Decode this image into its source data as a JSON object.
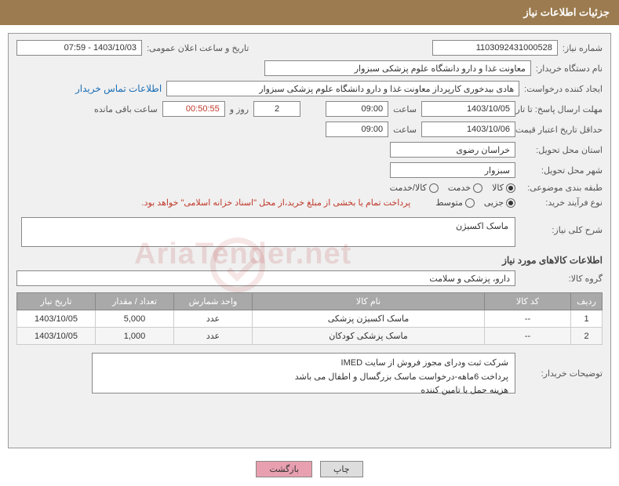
{
  "header": {
    "title": "جزئیات اطلاعات نیاز"
  },
  "fields": {
    "need_number_label": "شماره نیاز:",
    "need_number": "1103092431000528",
    "announce_datetime_label": "تاریخ و ساعت اعلان عمومی:",
    "announce_datetime": "1403/10/03 - 07:59",
    "buyer_org_label": "نام دستگاه خریدار:",
    "buyer_org": "معاونت غذا و دارو   دانشگاه علوم پزشکی سبزوار",
    "requester_label": "ایجاد کننده درخواست:",
    "requester": "هادی بیدخوری کارپرداز معاونت غذا و دارو   دانشگاه علوم پزشکی سبزوار",
    "buyer_contact_link": "اطلاعات تماس خریدار",
    "deadline_label": "مهلت ارسال پاسخ: تا تاریخ:",
    "deadline_date": "1403/10/05",
    "time_lbl": "ساعت",
    "deadline_time": "09:00",
    "days_label": "روز و",
    "days_remain": "2",
    "countdown": "00:50:55",
    "remain_label": "ساعت باقی مانده",
    "validity_label": "حداقل تاریخ اعتبار قیمت: تا تاریخ:",
    "validity_date": "1403/10/06",
    "validity_time": "09:00",
    "province_label": "استان محل تحویل:",
    "province": "خراسان رضوی",
    "city_label": "شهر محل تحویل:",
    "city": "سبزوار",
    "category_label": "طبقه بندی موضوعی:",
    "cat_kala": "کالا",
    "cat_khadamat": "خدمت",
    "cat_both": "کالا/خدمت",
    "process_label": "نوع فرآیند خرید:",
    "proc_jozi": "جزیی",
    "proc_mid": "متوسط",
    "payment_note": "پرداخت تمام یا بخشی از مبلغ خرید،از محل \"اسناد خزانه اسلامی\" خواهد بود.",
    "overview_label": "شرح کلی نیاز:",
    "overview": "ماسک اکسیژن",
    "items_section": "اطلاعات کالاهای مورد نیاز",
    "group_label": "گروه کالا:",
    "group": "دارو، پزشکی و سلامت",
    "buyer_notes_label": "توضیحات خریدار:",
    "buyer_notes_l1": "شرکت ثبت ودرای مجوز فروش از سایت IMED",
    "buyer_notes_l2": "پرداخت 6ماهه-درخواست ماسک بزرگسال و اطفال می باشد",
    "buyer_notes_l3": "هزینه حمل با تامین کننده"
  },
  "table": {
    "headers": {
      "row": "ردیف",
      "code": "کد کالا",
      "name": "نام کالا",
      "unit": "واحد شمارش",
      "qty": "تعداد / مقدار",
      "date": "تاریخ نیاز"
    },
    "rows": [
      {
        "row": "1",
        "code": "--",
        "name": "ماسک اکسیژن پزشکی",
        "unit": "عدد",
        "qty": "5,000",
        "date": "1403/10/05"
      },
      {
        "row": "2",
        "code": "--",
        "name": "ماسک پزشکی کودکان",
        "unit": "عدد",
        "qty": "1,000",
        "date": "1403/10/05"
      }
    ]
  },
  "buttons": {
    "print": "چاپ",
    "back": "بازگشت"
  },
  "watermark": "AriaTender.net",
  "colors": {
    "header_bg": "#9b7b4f",
    "th_bg": "#a9a9a9",
    "link": "#1a6db5",
    "note": "#c0392b",
    "btn_back": "#e8a0b0"
  }
}
